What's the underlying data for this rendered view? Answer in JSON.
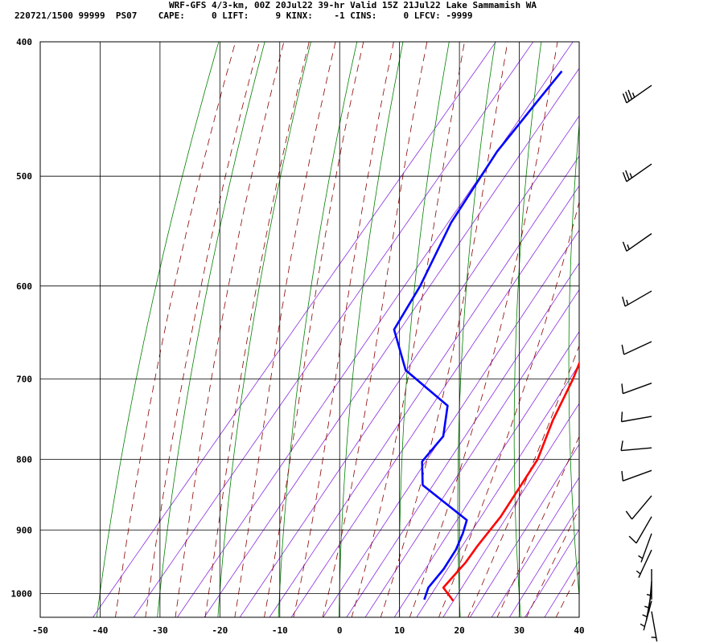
{
  "header": {
    "line1": "WRF-GFS 4/3-km, 00Z 20Jul22 39-hr Valid 15Z 21Jul22 Lake Sammamish WA",
    "line2": "220721/1500 99999  PS07    CAPE:     0 LIFT:     9 KINX:    -1 CINS:     0 LFCV: -9999"
  },
  "chart_data": {
    "type": "skew-t",
    "title": "WRF-GFS 4/3-km, 00Z 20Jul22 39-hr Valid 15Z 21Jul22 Lake Sammamish WA",
    "xlabel": "",
    "ylabel": "",
    "xlim": [
      -50,
      40
    ],
    "ylim": [
      1040,
      400
    ],
    "x_ticks": [
      -50,
      -40,
      -30,
      -20,
      -10,
      0,
      10,
      20,
      30,
      40
    ],
    "pressure_ticks": [
      400,
      500,
      600,
      700,
      800,
      900,
      1000
    ],
    "grid": true,
    "colors": {
      "temperature": "#ff0000",
      "dewpoint": "#0000ff",
      "isotherm": "#000000",
      "dry_adiabat": "#008000",
      "moist_adiabat": "#8b0000",
      "mixing_ratio": "#8a2be2",
      "barb": "#000000"
    },
    "series": [
      {
        "name": "",
        "key": "temperature",
        "points": [
          {
            "p": 1012,
            "t": 16.8
          },
          {
            "p": 990,
            "t": 13.4
          },
          {
            "p": 970,
            "t": 13.6
          },
          {
            "p": 950,
            "t": 13.8
          },
          {
            "p": 925,
            "t": 13.6
          },
          {
            "p": 880,
            "t": 13.6
          },
          {
            "p": 850,
            "t": 13.1
          },
          {
            "p": 800,
            "t": 12.2
          },
          {
            "p": 750,
            "t": 9.6
          },
          {
            "p": 700,
            "t": 7.5
          },
          {
            "p": 650,
            "t": 4.6
          },
          {
            "p": 600,
            "t": 1.2
          },
          {
            "p": 550,
            "t": -4.1
          },
          {
            "p": 500,
            "t": -10.0
          },
          {
            "p": 450,
            "t": -16.5
          },
          {
            "p": 420,
            "t": -20.3
          }
        ]
      },
      {
        "name": "",
        "key": "dewpoint",
        "points": [
          {
            "p": 1010,
            "t": 11.8
          },
          {
            "p": 990,
            "t": 10.9
          },
          {
            "p": 960,
            "t": 11.0
          },
          {
            "p": 930,
            "t": 10.5
          },
          {
            "p": 905,
            "t": 9.5
          },
          {
            "p": 885,
            "t": 8.4
          },
          {
            "p": 835,
            "t": -3.6
          },
          {
            "p": 803,
            "t": -6.8
          },
          {
            "p": 770,
            "t": -6.6
          },
          {
            "p": 732,
            "t": -9.9
          },
          {
            "p": 690,
            "t": -21.6
          },
          {
            "p": 645,
            "t": -28.9
          },
          {
            "p": 600,
            "t": -30.3
          },
          {
            "p": 540,
            "t": -33.5
          },
          {
            "p": 480,
            "t": -35.2
          },
          {
            "p": 440,
            "t": -35.1
          },
          {
            "p": 420,
            "t": -35.0
          }
        ]
      }
    ],
    "wind_barbs": [
      {
        "p": 430,
        "dir": 235,
        "kt": 35
      },
      {
        "p": 490,
        "dir": 235,
        "kt": 25
      },
      {
        "p": 550,
        "dir": 235,
        "kt": 15
      },
      {
        "p": 605,
        "dir": 240,
        "kt": 15
      },
      {
        "p": 658,
        "dir": 245,
        "kt": 10
      },
      {
        "p": 705,
        "dir": 250,
        "kt": 10
      },
      {
        "p": 745,
        "dir": 260,
        "kt": 10
      },
      {
        "p": 785,
        "dir": 265,
        "kt": 10
      },
      {
        "p": 815,
        "dir": 250,
        "kt": 10
      },
      {
        "p": 850,
        "dir": 220,
        "kt": 10
      },
      {
        "p": 880,
        "dir": 210,
        "kt": 10
      },
      {
        "p": 905,
        "dir": 200,
        "kt": 5
      },
      {
        "p": 930,
        "dir": 205,
        "kt": 5
      },
      {
        "p": 960,
        "dir": 180,
        "kt": 5
      },
      {
        "p": 980,
        "dir": 185,
        "kt": 5
      },
      {
        "p": 995,
        "dir": 190,
        "kt": 5
      },
      {
        "p": 1012,
        "dir": 195,
        "kt": 5
      },
      {
        "p": 1030,
        "dir": 170,
        "kt": 5
      }
    ]
  }
}
